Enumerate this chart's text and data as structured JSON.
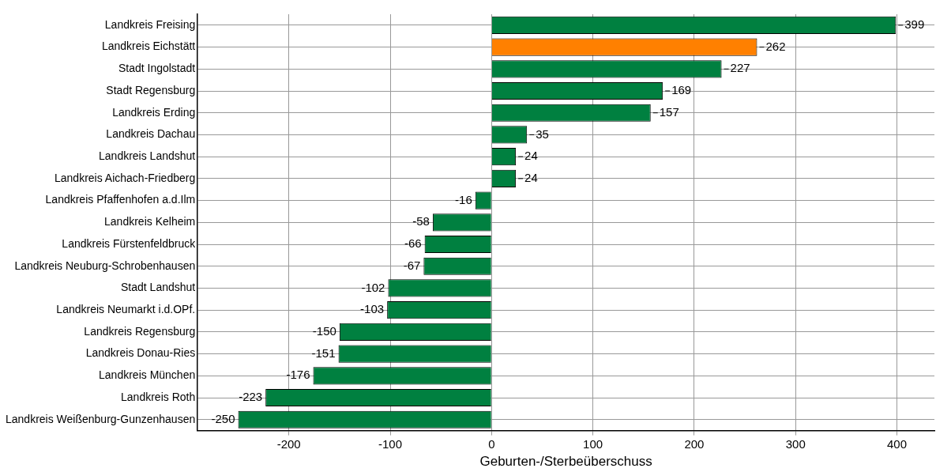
{
  "chart_data": {
    "type": "bar",
    "orientation": "horizontal",
    "xlabel": "Geburten-/Sterbeüberschuss",
    "categories": [
      "Landkreis Freising",
      "Landkreis Eichstätt",
      "Stadt Ingolstadt",
      "Stadt Regensburg",
      "Landkreis Erding",
      "Landkreis Dachau",
      "Landkreis Landshut",
      "Landkreis Aichach-Friedberg",
      "Landkreis Pfaffenhofen a.d.Ilm",
      "Landkreis Kelheim",
      "Landkreis Fürstenfeldbruck",
      "Landkreis Neuburg-Schrobenhausen",
      "Stadt Landshut",
      "Landkreis Neumarkt i.d.OPf.",
      "Landkreis Regensburg",
      "Landkreis Donau-Ries",
      "Landkreis München",
      "Landkreis Roth",
      "Landkreis Weißenburg-Gunzenhausen"
    ],
    "values": [
      399,
      262,
      227,
      169,
      157,
      35,
      24,
      24,
      -16,
      -58,
      -66,
      -67,
      -102,
      -103,
      -150,
      -151,
      -176,
      -223,
      -250
    ],
    "colors": [
      "#008040",
      "#ff8000",
      "#008040",
      "#008040",
      "#008040",
      "#008040",
      "#008040",
      "#008040",
      "#008040",
      "#008040",
      "#008040",
      "#008040",
      "#008040",
      "#008040",
      "#008040",
      "#008040",
      "#008040",
      "#008040",
      "#008040"
    ],
    "xlim": [
      -290,
      437
    ],
    "xticks": [
      -200,
      -100,
      0,
      100,
      200,
      300,
      400
    ],
    "grid": true,
    "data_labels": true,
    "legend": false
  }
}
